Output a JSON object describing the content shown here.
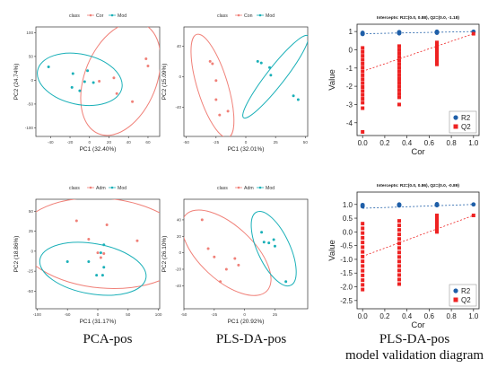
{
  "colors": {
    "red": "#f08078",
    "cyan": "#1ab0b8",
    "red_sq": "#ee2222",
    "blue_pt": "#1f5fa8"
  },
  "captions": [
    "PCA-pos",
    "PLS-DA-pos",
    "PLS-DA-pos",
    "model validation diagram"
  ],
  "chart_data": [
    {
      "type": "scatter",
      "legend_title": "class",
      "legend_position": "top",
      "xlabel": "PC1 (32.40%)",
      "ylabel": "PC2 (24.74%)",
      "xlim": [
        -55,
        72
      ],
      "ylim": [
        -118,
        112
      ],
      "xticks": [
        -40,
        -20,
        0,
        20,
        40,
        60
      ],
      "yticks": [
        -100,
        -50,
        0,
        50,
        100
      ],
      "series": [
        {
          "name": "Cor",
          "color": "red",
          "points": [
            [
              58,
              45
            ],
            [
              60,
              30
            ],
            [
              25,
              5
            ],
            [
              28,
              -28
            ],
            [
              44,
              -45
            ],
            [
              10,
              -2
            ]
          ],
          "ellipse": {
            "cx": 32,
            "cy": 3,
            "rx": 66,
            "ry": 40,
            "angle": 68
          }
        },
        {
          "name": "Mod",
          "color": "cyan",
          "points": [
            [
              -42,
              28
            ],
            [
              -17,
              14
            ],
            [
              -2,
              20
            ],
            [
              -5,
              -3
            ],
            [
              -18,
              -15
            ],
            [
              -10,
              -22
            ],
            [
              4,
              -5
            ]
          ],
          "ellipse": {
            "cx": -10,
            "cy": 2,
            "rx": 48,
            "ry": 28,
            "angle": -12
          }
        }
      ]
    },
    {
      "type": "scatter",
      "legend_title": "class",
      "legend_position": "top",
      "xlabel": "PC1 (32.01%)",
      "ylabel": "PC2 (15.09%)",
      "xlim": [
        -52,
        52
      ],
      "ylim": [
        -78,
        65
      ],
      "xticks": [
        -50,
        -25,
        0,
        25,
        50
      ],
      "yticks": [
        -40,
        0,
        40
      ],
      "series": [
        {
          "name": "Con",
          "color": "red",
          "points": [
            [
              -30,
              20
            ],
            [
              -28,
              17
            ],
            [
              -25,
              -5
            ],
            [
              -25,
              -30
            ],
            [
              -15,
              -45
            ],
            [
              -22,
              -50
            ]
          ],
          "ellipse": {
            "cx": -28,
            "cy": -12,
            "rx": 60,
            "ry": 17,
            "angle": -73
          }
        },
        {
          "name": "Mod",
          "color": "cyan",
          "points": [
            [
              10,
              20
            ],
            [
              13,
              18
            ],
            [
              20,
              12
            ],
            [
              21,
              2
            ],
            [
              40,
              -25
            ],
            [
              44,
              -30
            ]
          ],
          "ellipse": {
            "cx": 25,
            "cy": 0,
            "rx": 58,
            "ry": 10,
            "angle": 52
          }
        }
      ]
    },
    {
      "type": "scatter",
      "legend_title": "class",
      "legend_position": "top",
      "xlabel": "PC1 (31.17%)",
      "ylabel": "PC2 (18.86%)",
      "xlim": [
        -102,
        102
      ],
      "ylim": [
        -72,
        65
      ],
      "xticks": [
        -100,
        -50,
        0,
        50,
        100
      ],
      "yticks": [
        -50,
        -25,
        0,
        25,
        50
      ],
      "series": [
        {
          "name": "Adm",
          "color": "red",
          "points": [
            [
              -35,
              38
            ],
            [
              15,
              33
            ],
            [
              65,
              13
            ],
            [
              -15,
              15
            ],
            [
              0,
              -2
            ],
            [
              5,
              -8
            ],
            [
              10,
              -3
            ]
          ],
          "ellipse": {
            "cx": 10,
            "cy": 10,
            "rx": 95,
            "ry": 50,
            "angle": -5
          }
        },
        {
          "name": "Mod",
          "color": "cyan",
          "points": [
            [
              -50,
              -13
            ],
            [
              -15,
              -13
            ],
            [
              10,
              8
            ],
            [
              5,
              -2
            ],
            [
              10,
              -20
            ],
            [
              -2,
              -30
            ],
            [
              8,
              -30
            ]
          ],
          "ellipse": {
            "cx": -8,
            "cy": -22,
            "rx": 60,
            "ry": 28,
            "angle": -10
          }
        }
      ]
    },
    {
      "type": "scatter",
      "legend_title": "class",
      "legend_position": "top",
      "xlabel": "PC1 (20.92%)",
      "ylabel": "PC2 (26.10%)",
      "xlim": [
        -50,
        52
      ],
      "ylim": [
        -68,
        65
      ],
      "xticks": [
        -50,
        -25,
        0,
        25
      ],
      "yticks": [
        -40,
        -20,
        0,
        20,
        40
      ],
      "series": [
        {
          "name": "Adm",
          "color": "red",
          "points": [
            [
              -35,
              40
            ],
            [
              -30,
              5
            ],
            [
              -25,
              -5
            ],
            [
              -15,
              -20
            ],
            [
              -5,
              -15
            ],
            [
              -8,
              -7
            ],
            [
              -20,
              -35
            ]
          ],
          "ellipse": {
            "cx": -15,
            "cy": 0,
            "rx": 62,
            "ry": 30,
            "angle": -43
          }
        },
        {
          "name": "Mod",
          "color": "cyan",
          "points": [
            [
              14,
              25
            ],
            [
              16,
              13
            ],
            [
              20,
              12
            ],
            [
              24,
              16
            ],
            [
              25,
              8
            ],
            [
              34,
              -35
            ]
          ],
          "ellipse": {
            "cx": 24,
            "cy": 5,
            "rx": 45,
            "ry": 18,
            "angle": -65
          }
        }
      ]
    },
    {
      "type": "scatter",
      "title": "Intercepts: R2=(0.0, 0.88), Q2=(0.0, -1.18)",
      "xlabel": "Cor",
      "ylabel": "Value",
      "xlim": [
        -0.05,
        1.05
      ],
      "ylim": [
        -4.7,
        1.4
      ],
      "xticks": [
        0.0,
        0.2,
        0.4,
        0.6,
        0.8,
        1.0
      ],
      "yticks": [
        -4,
        -3,
        -2,
        -1,
        0,
        1
      ],
      "legend_position": "bottom-right",
      "series": [
        {
          "name": "R2",
          "color": "blue_pt",
          "columns": [
            {
              "x": 0.0,
              "values": [
                0.86,
                0.9,
                0.93,
                0.88
              ]
            },
            {
              "x": 0.33,
              "values": [
                0.92,
                0.95,
                0.97,
                0.9
              ]
            },
            {
              "x": 0.67,
              "values": [
                0.95,
                0.97,
                0.99,
                0.93
              ]
            },
            {
              "x": 1.0,
              "values": [
                0.99
              ]
            }
          ],
          "fit_line": [
            [
              0,
              0.88
            ],
            [
              1,
              1.0
            ]
          ]
        },
        {
          "name": "Q2",
          "color": "red_sq",
          "columns": [
            {
              "x": 0.0,
              "min": -2.9,
              "max": 0.1,
              "outliers": [
                -3.2,
                -4.5
              ]
            },
            {
              "x": 0.33,
              "min": -2.6,
              "max": 0.2,
              "outliers": [
                -3.0
              ]
            },
            {
              "x": 0.67,
              "min": -0.8,
              "max": 0.4
            },
            {
              "x": 1.0,
              "values": [
                0.88
              ]
            }
          ],
          "fit_line": [
            [
              0,
              -1.18
            ],
            [
              1,
              0.88
            ]
          ]
        }
      ]
    },
    {
      "type": "scatter",
      "title": "Intercepts: R2=(0.0, 0.86), Q2=(0.0, -0.89)",
      "xlabel": "Cor",
      "ylabel": "Value",
      "xlim": [
        -0.05,
        1.05
      ],
      "ylim": [
        -2.8,
        1.45
      ],
      "xticks": [
        0.0,
        0.2,
        0.4,
        0.6,
        0.8,
        1.0
      ],
      "yticks": [
        -2.5,
        -2.0,
        -1.5,
        -1.0,
        -0.5,
        0.0,
        0.5,
        1.0
      ],
      "legend_position": "bottom-right",
      "series": [
        {
          "name": "R2",
          "color": "blue_pt",
          "columns": [
            {
              "x": 0.0,
              "values": [
                0.93,
                0.96,
                0.98
              ]
            },
            {
              "x": 0.33,
              "values": [
                0.96,
                0.98,
                1.0
              ]
            },
            {
              "x": 0.67,
              "values": [
                0.97,
                0.99,
                1.01
              ]
            },
            {
              "x": 1.0,
              "values": [
                1.0
              ]
            }
          ],
          "fit_line": [
            [
              0,
              0.86
            ],
            [
              1,
              1.0
            ]
          ]
        },
        {
          "name": "Q2",
          "color": "red_sq",
          "columns": [
            {
              "x": 0.0,
              "min": -2.1,
              "max": 0.3
            },
            {
              "x": 0.33,
              "min": -1.9,
              "max": 0.4
            },
            {
              "x": 0.67,
              "min": 0.0,
              "max": 0.6
            },
            {
              "x": 1.0,
              "values": [
                0.6
              ]
            }
          ],
          "fit_line": [
            [
              0,
              -0.89
            ],
            [
              1,
              0.6
            ]
          ]
        }
      ]
    }
  ]
}
